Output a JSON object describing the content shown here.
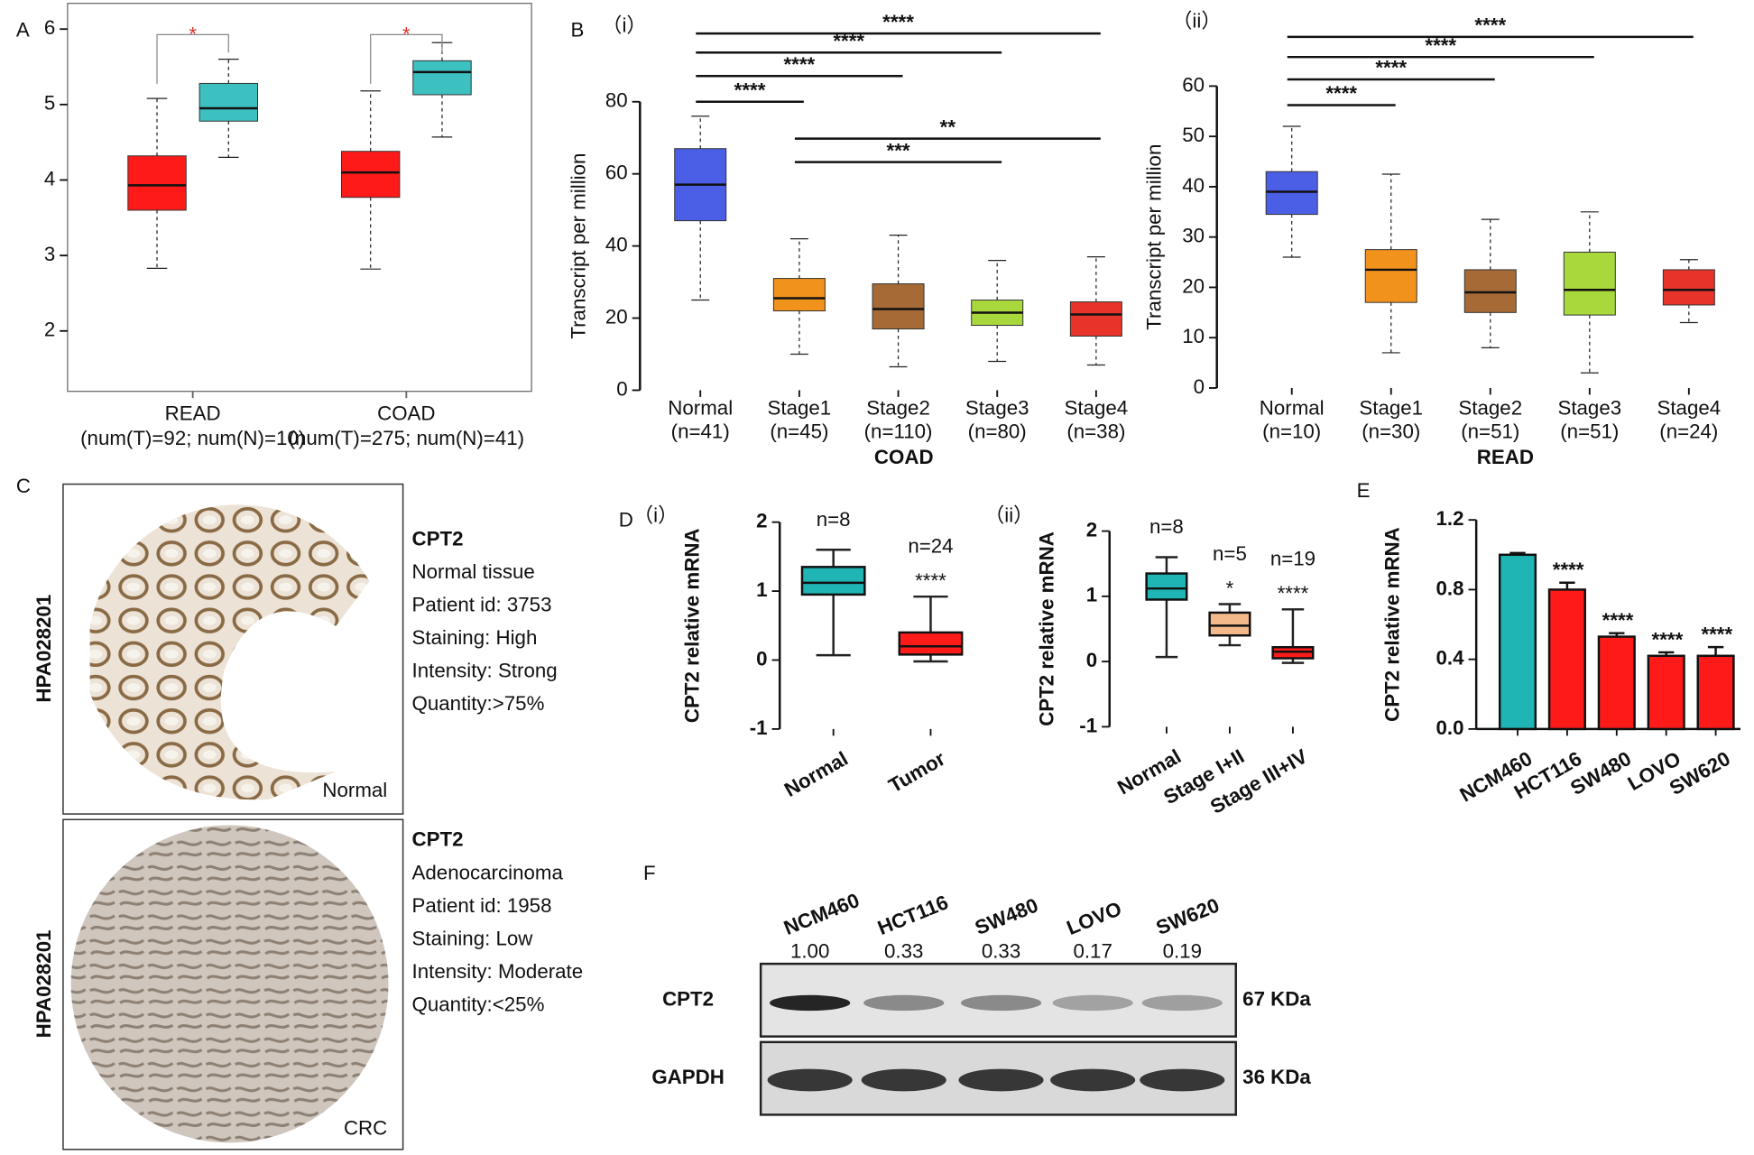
{
  "chart_data": [
    {
      "type": "box",
      "panel": "A",
      "categories": [
        "READ",
        "COAD"
      ],
      "category_notes": [
        "(num(T)=92; num(N)=10)",
        "(num(T)=275; num(N)=41)"
      ],
      "series": [
        {
          "color": "#ff1a1a",
          "whisker_low": [
            2.83,
            2.82
          ],
          "q1": [
            3.6,
            3.77
          ],
          "median": [
            3.93,
            4.1
          ],
          "q3": [
            4.32,
            4.38
          ],
          "whisker_high": [
            5.08,
            5.18
          ]
        },
        {
          "color": "#3cc0c0",
          "whisker_low": [
            4.3,
            4.57
          ],
          "q1": [
            4.78,
            5.13
          ],
          "median": [
            4.95,
            5.43
          ],
          "q3": [
            5.28,
            5.58
          ],
          "whisker_high": [
            5.6,
            5.82
          ]
        }
      ],
      "significance": [
        "*",
        "*"
      ],
      "ylim": [
        1.2,
        6.34
      ],
      "yticks": [
        2,
        3,
        4,
        5,
        6
      ]
    },
    {
      "type": "box",
      "panel": "B",
      "subpanel": "（i）",
      "xlabel": "COAD",
      "ylabel": "Transcript per million",
      "categories": [
        "Normal",
        "Stage1",
        "Stage2",
        "Stage3",
        "Stage4"
      ],
      "category_notes": [
        "(n=41)",
        "(n=45)",
        "(n=110)",
        "(n=80)",
        "(n=38)"
      ],
      "series": [
        {
          "colors": [
            "#4b5fe6",
            "#f0921c",
            "#a66a36",
            "#a8d83c",
            "#e8332a"
          ],
          "whisker_low": [
            25,
            10,
            6.5,
            8,
            7
          ],
          "q1": [
            47,
            22,
            17,
            18,
            15
          ],
          "median": [
            57,
            25.5,
            22.5,
            21.5,
            21
          ],
          "q3": [
            67,
            31,
            29.5,
            25,
            24.5
          ],
          "whisker_high": [
            76,
            42,
            43,
            36,
            37
          ]
        }
      ],
      "comparisons": [
        {
          "pair": [
            "Normal",
            "Stage4"
          ],
          "label": "****"
        },
        {
          "pair": [
            "Normal",
            "Stage3"
          ],
          "label": "****"
        },
        {
          "pair": [
            "Normal",
            "Stage2"
          ],
          "label": "****"
        },
        {
          "pair": [
            "Normal",
            "Stage1"
          ],
          "label": "****"
        },
        {
          "pair": [
            "Stage1",
            "Stage4"
          ],
          "label": "**"
        },
        {
          "pair": [
            "Stage1",
            "Stage3"
          ],
          "label": "***"
        }
      ],
      "ylim": [
        0,
        80
      ],
      "yticks": [
        0,
        20,
        40,
        60,
        80
      ]
    },
    {
      "type": "box",
      "subpanel": "（ii）",
      "xlabel": "READ",
      "ylabel": "Transcript per million",
      "categories": [
        "Normal",
        "Stage1",
        "Stage2",
        "Stage3",
        "Stage4"
      ],
      "category_notes": [
        "(n=10)",
        "(n=30)",
        "(n=51)",
        "(n=51)",
        "(n=24)"
      ],
      "series": [
        {
          "colors": [
            "#4b5fe6",
            "#f0921c",
            "#a66a36",
            "#a8d83c",
            "#e8332a"
          ],
          "whisker_low": [
            26,
            7,
            8,
            3,
            13
          ],
          "q1": [
            34.5,
            17,
            15,
            14.5,
            16.5
          ],
          "median": [
            39,
            23.5,
            19,
            19.5,
            19.5
          ],
          "q3": [
            43,
            27.5,
            23.5,
            27,
            23.5
          ],
          "whisker_high": [
            52,
            42.5,
            33.5,
            35,
            25.5
          ]
        }
      ],
      "comparisons": [
        {
          "pair": [
            "Normal",
            "Stage4"
          ],
          "label": "****"
        },
        {
          "pair": [
            "Normal",
            "Stage3"
          ],
          "label": "****"
        },
        {
          "pair": [
            "Normal",
            "Stage2"
          ],
          "label": "****"
        },
        {
          "pair": [
            "Normal",
            "Stage1"
          ],
          "label": "****"
        }
      ],
      "ylim": [
        0,
        60
      ],
      "yticks": [
        0,
        10,
        20,
        30,
        40,
        50,
        60
      ]
    },
    {
      "type": "box",
      "panel": "D",
      "subpanel": "（i）",
      "ylabel": "CPT2 relative mRNA",
      "categories": [
        "Normal",
        "Tumor"
      ],
      "n_labels": [
        "n=8",
        "n=24"
      ],
      "sig_labels": [
        null,
        "****"
      ],
      "series": [
        {
          "colors": [
            "#1fb5b5",
            "#ff1a1a"
          ],
          "whisker_low": [
            0.07,
            -0.02
          ],
          "q1": [
            0.95,
            0.08
          ],
          "median": [
            1.12,
            0.2
          ],
          "q3": [
            1.35,
            0.4
          ],
          "whisker_high": [
            1.6,
            0.92
          ]
        }
      ],
      "ylim": [
        -1,
        2
      ],
      "yticks": [
        -1,
        0,
        1,
        2
      ]
    },
    {
      "type": "box",
      "subpanel": "（ii）",
      "ylabel": "CPT2 relative mRNA",
      "categories": [
        "Normal",
        "Stage I+II",
        "Stage III+IV"
      ],
      "n_labels": [
        "n=8",
        "n=5",
        "n=19"
      ],
      "sig_labels": [
        null,
        "*",
        "****"
      ],
      "series": [
        {
          "colors": [
            "#1fb5b5",
            "#f4b98a",
            "#ff1a1a"
          ],
          "whisker_low": [
            0.07,
            0.25,
            -0.02
          ],
          "q1": [
            0.95,
            0.4,
            0.05
          ],
          "median": [
            1.12,
            0.55,
            0.15
          ],
          "q3": [
            1.35,
            0.75,
            0.22
          ],
          "whisker_high": [
            1.6,
            0.88,
            0.8
          ]
        }
      ],
      "ylim": [
        -1,
        2
      ],
      "yticks": [
        -1,
        0,
        1,
        2
      ]
    },
    {
      "type": "bar",
      "panel": "E",
      "ylabel": "CPT2 relative mRNA",
      "categories": [
        "NCM460",
        "HCT116",
        "SW480",
        "LOVO",
        "SW620"
      ],
      "values": [
        1.0,
        0.8,
        0.53,
        0.42,
        0.42
      ],
      "errors": [
        0.01,
        0.04,
        0.02,
        0.02,
        0.05
      ],
      "colors": [
        "#1fb5b5",
        "#ff1a1a",
        "#ff1a1a",
        "#ff1a1a",
        "#ff1a1a"
      ],
      "sig_labels": [
        null,
        "****",
        "****",
        "****",
        "****"
      ],
      "ylim": [
        0,
        1.2
      ],
      "yticks": [
        {
          "value": 0,
          "label": "0.0"
        },
        0.4,
        0.8,
        {
          "value": 1.2,
          "label": "1.2"
        }
      ]
    },
    {
      "type": "blot",
      "panel": "F",
      "categories": [
        "NCM460",
        "HCT116",
        "SW480",
        "LOVO",
        "SW620"
      ],
      "values": [
        1.0,
        0.33,
        0.33,
        0.17,
        0.19
      ],
      "value_labels": [
        "1.00",
        "0.33",
        "0.33",
        "0.17",
        "0.19"
      ],
      "rows": [
        {
          "name": "CPT2",
          "size": "67 KDa"
        },
        {
          "name": "GAPDH",
          "size": "36 KDa"
        }
      ]
    }
  ],
  "panel_c": {
    "label": "C",
    "samples": [
      {
        "antibody": "HPA028201",
        "caption": "Normal",
        "lines": [
          "CPT2",
          "Normal tissue",
          "Patient id: 3753",
          "Staining: High",
          "Intensity: Strong",
          "Quantity:>75%"
        ]
      },
      {
        "antibody": "HPA028201",
        "caption": "CRC",
        "lines": [
          "CPT2",
          "Adenocarcinoma",
          "Patient id: 1958",
          "Staining: Low",
          "Intensity: Moderate",
          "Quantity:<25%"
        ]
      }
    ]
  }
}
